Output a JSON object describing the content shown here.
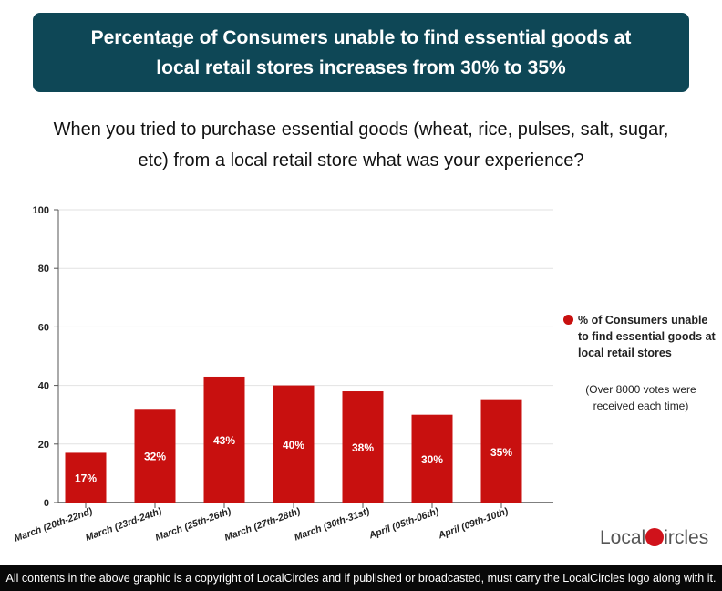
{
  "header": {
    "title": "Percentage of Consumers unable to find essential goods at local retail stores increases from 30% to 35%"
  },
  "question": "When you tried to purchase essential goods (wheat, rice, pulses, salt, sugar, etc) from a local retail store what was your experience?",
  "chart_data": {
    "type": "bar",
    "categories": [
      "March (20th-22nd)",
      "March (23rd-24th)",
      "March (25th-26th)",
      "March (27th-28th)",
      "March (30th-31st)",
      "April (05th-06th)",
      "April (09th-10th)"
    ],
    "series": [
      {
        "name": "% of Consumers unable to find essential goods at local retail stores",
        "values": [
          17,
          32,
          43,
          40,
          38,
          30,
          35
        ]
      }
    ],
    "data_labels": [
      "17%",
      "32%",
      "43%",
      "40%",
      "38%",
      "30%",
      "35%"
    ],
    "ylim": [
      0,
      100
    ],
    "yticks": [
      0,
      20,
      40,
      60,
      80,
      100
    ],
    "grid": true,
    "legend_position": "right",
    "bar_color": "#c8100f"
  },
  "legend": {
    "label": "% of Consumers unable to find essential goods at local retail stores",
    "note": "(Over 8000 votes were received each time)"
  },
  "logo": {
    "text": "LocalCircles"
  },
  "footer": {
    "text": "All contents in the above graphic is a copyright of LocalCircles and if published or broadcasted, must carry the LocalCircles logo along with it."
  }
}
